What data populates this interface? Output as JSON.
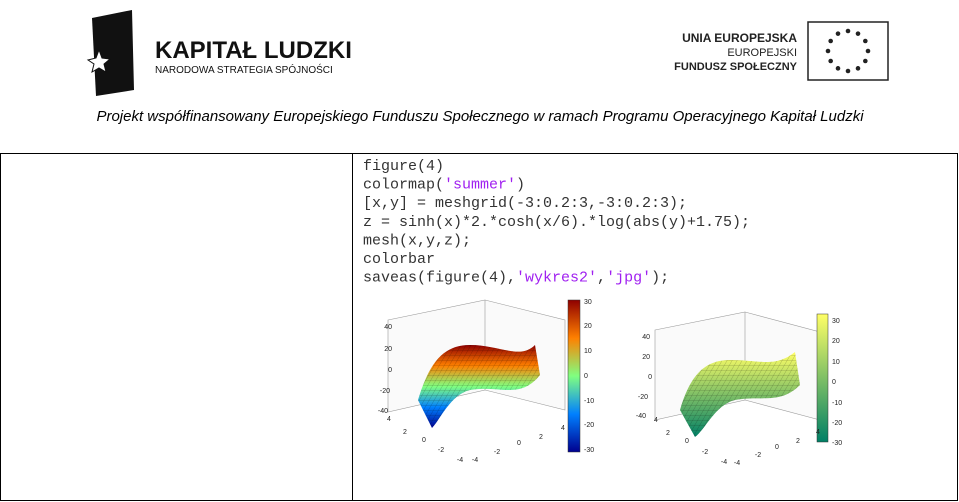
{
  "header": {
    "logo_left": {
      "title": "KAPITAŁ LUDZKI",
      "subtitle": "NARODOWA STRATEGIA SPÓJNOŚCI"
    },
    "logo_right": {
      "lines": [
        "UNIA EUROPEJSKA",
        "EUROPEJSKI",
        "FUNDUSZ SPOŁECZNY"
      ]
    },
    "caption": "Projekt współfinansowany Europejskiego Funduszu Społecznego w ramach Programu Operacyjnego Kapitał Ludzki"
  },
  "code": {
    "lines": [
      [
        "figure(4)"
      ],
      [
        "colormap(",
        "'summer'",
        ")"
      ],
      [
        "[x,y] = meshgrid(-3:0.2:3,-3:0.2:3);"
      ],
      [
        "z = sinh(x)*2.*cosh(x/6).*log(abs(y)+1.75);"
      ],
      [
        "mesh(x,y,z);"
      ],
      [
        "colorbar"
      ],
      [
        "saveas(figure(4),",
        "'wykres2'",
        ",",
        "'jpg'",
        ");"
      ]
    ]
  },
  "figures": [
    {
      "z_ticks": [
        40,
        20,
        0,
        -20,
        -40
      ],
      "x_ticks": [
        4,
        2,
        0,
        -2,
        -4
      ],
      "y_ticks": [
        -4,
        -2,
        0,
        2,
        4
      ],
      "colorbar_ticks": [
        30,
        20,
        10,
        0,
        -10,
        -20,
        -30
      ]
    },
    {
      "z_ticks": [
        40,
        20,
        0,
        -20,
        -40
      ],
      "x_ticks": [
        4,
        2,
        0,
        -2,
        -4
      ],
      "y_ticks": [
        -4,
        -2,
        0,
        2,
        4
      ],
      "colorbar_ticks": [
        30,
        20,
        10,
        0,
        -10,
        -20,
        -30
      ]
    }
  ]
}
